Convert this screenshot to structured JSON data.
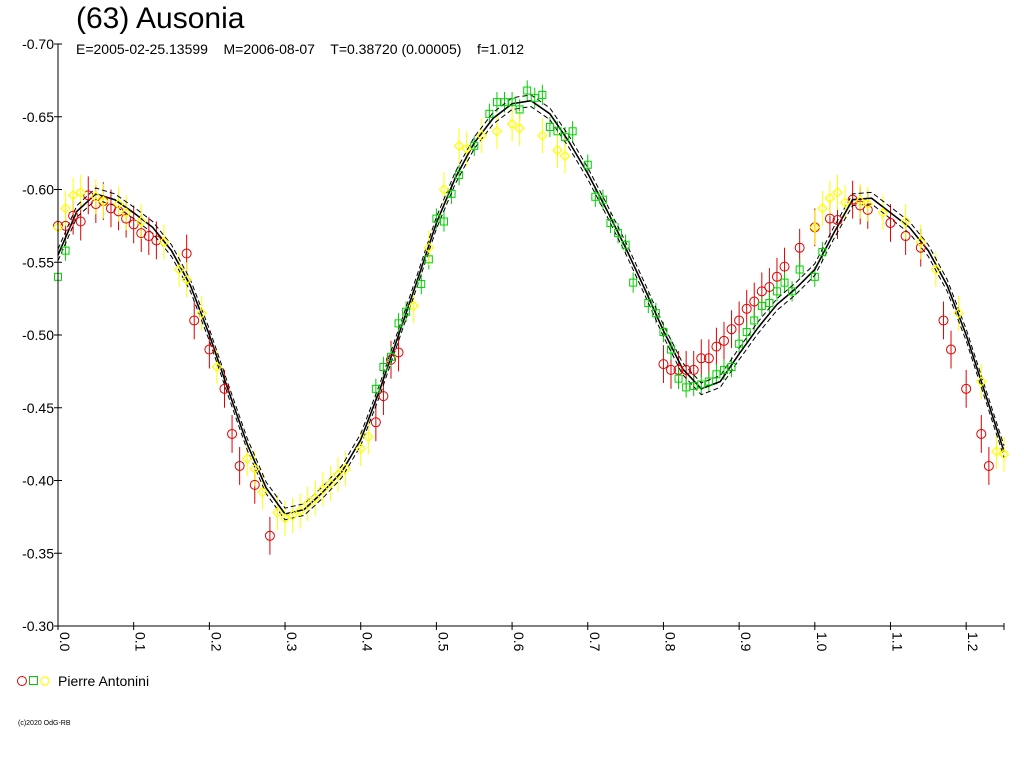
{
  "title": "(63) Ausonia",
  "subtitle": "E=2005-02-25.13599    M=2006-08-07    T=0.38720 (0.00005)    f=1.012",
  "legend": {
    "label": "Pierre Antonini"
  },
  "copyright": "(c)2020 OdG-RB",
  "colors": {
    "red": "#e00000",
    "green": "#00d000",
    "yellow": "#ffff00",
    "axis": "#000000"
  },
  "chart_data": {
    "type": "scatter",
    "xlim": [
      0.0,
      1.25
    ],
    "ylim": [
      -0.7,
      -0.3
    ],
    "y_inverted": true,
    "x_ticks": [
      "0.0",
      "0.1",
      "0.2",
      "0.3",
      "0.4",
      "0.5",
      "0.6",
      "0.7",
      "0.8",
      "0.9",
      "1.0",
      "1.1",
      "1.2"
    ],
    "y_ticks": [
      "-0.70",
      "-0.65",
      "-0.60",
      "-0.55",
      "-0.50",
      "-0.45",
      "-0.40",
      "-0.35",
      "-0.30"
    ],
    "fit_curve": {
      "x": [
        0.0,
        0.025,
        0.05,
        0.075,
        0.1,
        0.125,
        0.15,
        0.175,
        0.2,
        0.225,
        0.25,
        0.275,
        0.3,
        0.325,
        0.35,
        0.375,
        0.4,
        0.425,
        0.45,
        0.475,
        0.5,
        0.525,
        0.55,
        0.575,
        0.6,
        0.625,
        0.65,
        0.675,
        0.7,
        0.725,
        0.75,
        0.775,
        0.8,
        0.825,
        0.85,
        0.875,
        0.9,
        0.925,
        0.95,
        0.975,
        1.0,
        1.025,
        1.05,
        1.075,
        1.1,
        1.125,
        1.15,
        1.175,
        1.2,
        1.225,
        1.25
      ],
      "y": [
        -0.555,
        -0.585,
        -0.597,
        -0.593,
        -0.584,
        -0.574,
        -0.558,
        -0.534,
        -0.5,
        -0.462,
        -0.425,
        -0.395,
        -0.377,
        -0.38,
        -0.392,
        -0.406,
        -0.428,
        -0.462,
        -0.5,
        -0.538,
        -0.577,
        -0.608,
        -0.632,
        -0.649,
        -0.659,
        -0.661,
        -0.652,
        -0.633,
        -0.611,
        -0.586,
        -0.56,
        -0.532,
        -0.503,
        -0.477,
        -0.463,
        -0.468,
        -0.487,
        -0.505,
        -0.521,
        -0.532,
        -0.545,
        -0.57,
        -0.593,
        -0.594,
        -0.584,
        -0.574,
        -0.558,
        -0.534,
        -0.5,
        -0.46,
        -0.42
      ],
      "band": 0.004
    },
    "series": [
      {
        "name": "Pierre Antonini",
        "marker": "circle",
        "color": "#e00000",
        "x": [
          0.0,
          0.01,
          0.02,
          0.03,
          0.04,
          0.05,
          0.06,
          0.07,
          0.08,
          0.09,
          0.1,
          0.11,
          0.12,
          0.13,
          0.17,
          0.18,
          0.2,
          0.22,
          0.23,
          0.24,
          0.26,
          0.28,
          0.42,
          0.43,
          0.44,
          0.45,
          0.8,
          0.81,
          0.82,
          0.83,
          0.84,
          0.85,
          0.86,
          0.87,
          0.88,
          0.89,
          0.9,
          0.91,
          0.92,
          0.93,
          0.94,
          0.95,
          0.96,
          0.98,
          1.0,
          1.02,
          1.03,
          1.05,
          1.06,
          1.07,
          1.1,
          1.12,
          1.14,
          1.17,
          1.18,
          1.2,
          1.22,
          1.23
        ],
        "y": [
          -0.575,
          -0.575,
          -0.582,
          -0.578,
          -0.596,
          -0.59,
          -0.592,
          -0.587,
          -0.585,
          -0.58,
          -0.576,
          -0.57,
          -0.568,
          -0.565,
          -0.556,
          -0.51,
          -0.49,
          -0.463,
          -0.432,
          -0.41,
          -0.397,
          -0.362,
          -0.44,
          -0.458,
          -0.483,
          -0.488,
          -0.48,
          -0.476,
          -0.476,
          -0.476,
          -0.476,
          -0.484,
          -0.484,
          -0.492,
          -0.496,
          -0.504,
          -0.51,
          -0.518,
          -0.523,
          -0.53,
          -0.533,
          -0.54,
          -0.547,
          -0.56,
          -0.574,
          -0.58,
          -0.579,
          -0.593,
          -0.589,
          -0.586,
          -0.577,
          -0.568,
          -0.56,
          -0.51,
          -0.49,
          -0.463,
          -0.432,
          -0.41
        ],
        "err": 0.013
      },
      {
        "name": "Pierre Antonini",
        "marker": "square",
        "color": "#00d000",
        "x": [
          0.0,
          0.01,
          0.42,
          0.43,
          0.44,
          0.45,
          0.46,
          0.48,
          0.49,
          0.5,
          0.51,
          0.52,
          0.53,
          0.55,
          0.57,
          0.58,
          0.59,
          0.6,
          0.61,
          0.62,
          0.63,
          0.64,
          0.65,
          0.66,
          0.67,
          0.68,
          0.7,
          0.71,
          0.72,
          0.73,
          0.74,
          0.75,
          0.76,
          0.78,
          0.79,
          0.8,
          0.81,
          0.82,
          0.83,
          0.84,
          0.85,
          0.86,
          0.87,
          0.88,
          0.89,
          0.9,
          0.91,
          0.92,
          0.93,
          0.94,
          0.95,
          0.96,
          0.97,
          0.98,
          1.0,
          1.01
        ],
        "y": [
          -0.54,
          -0.558,
          -0.463,
          -0.478,
          -0.485,
          -0.508,
          -0.516,
          -0.535,
          -0.552,
          -0.58,
          -0.578,
          -0.597,
          -0.61,
          -0.63,
          -0.652,
          -0.66,
          -0.66,
          -0.66,
          -0.655,
          -0.668,
          -0.663,
          -0.665,
          -0.643,
          -0.64,
          -0.636,
          -0.64,
          -0.617,
          -0.595,
          -0.593,
          -0.577,
          -0.57,
          -0.562,
          -0.536,
          -0.522,
          -0.515,
          -0.502,
          -0.49,
          -0.47,
          -0.464,
          -0.465,
          -0.466,
          -0.468,
          -0.473,
          -0.476,
          -0.478,
          -0.494,
          -0.502,
          -0.51,
          -0.52,
          -0.522,
          -0.53,
          -0.536,
          -0.53,
          -0.545,
          -0.54,
          -0.557
        ],
        "err": 0.007
      },
      {
        "name": "Pierre Antonini",
        "marker": "diamond",
        "color": "#ffff00",
        "x": [
          0.0,
          0.01,
          0.02,
          0.03,
          0.05,
          0.06,
          0.08,
          0.09,
          0.11,
          0.14,
          0.16,
          0.17,
          0.19,
          0.21,
          0.25,
          0.26,
          0.27,
          0.29,
          0.3,
          0.31,
          0.32,
          0.33,
          0.34,
          0.35,
          0.36,
          0.37,
          0.38,
          0.4,
          0.41,
          0.47,
          0.49,
          0.51,
          0.53,
          0.54,
          0.56,
          0.58,
          0.6,
          0.61,
          0.64,
          0.66,
          0.67,
          1.0,
          1.01,
          1.02,
          1.03,
          1.04,
          1.06,
          1.07,
          1.09,
          1.12,
          1.14,
          1.16,
          1.19,
          1.22,
          1.24,
          1.25
        ],
        "y": [
          -0.574,
          -0.587,
          -0.596,
          -0.598,
          -0.595,
          -0.592,
          -0.59,
          -0.584,
          -0.578,
          -0.564,
          -0.545,
          -0.538,
          -0.515,
          -0.478,
          -0.415,
          -0.408,
          -0.392,
          -0.378,
          -0.374,
          -0.376,
          -0.379,
          -0.384,
          -0.388,
          -0.394,
          -0.398,
          -0.404,
          -0.408,
          -0.422,
          -0.43,
          -0.52,
          -0.56,
          -0.6,
          -0.63,
          -0.628,
          -0.637,
          -0.64,
          -0.645,
          -0.642,
          -0.637,
          -0.627,
          -0.623,
          -0.574,
          -0.587,
          -0.594,
          -0.598,
          -0.591,
          -0.592,
          -0.59,
          -0.584,
          -0.578,
          -0.564,
          -0.545,
          -0.515,
          -0.468,
          -0.42,
          -0.418
        ],
        "err": 0.012
      }
    ]
  }
}
